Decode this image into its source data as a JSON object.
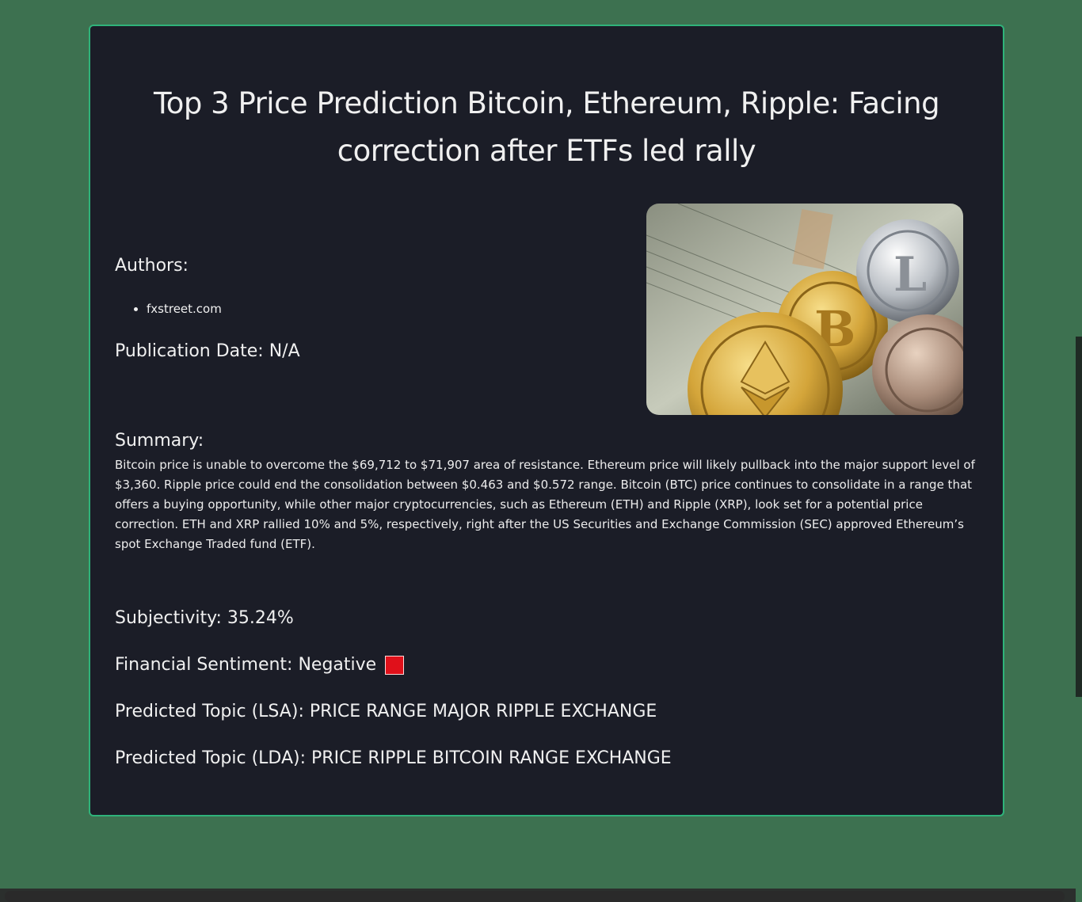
{
  "article": {
    "title": "Top 3 Price Prediction Bitcoin, Ethereum, Ripple: Facing correction after ETFs led rally",
    "authors_label": "Authors:",
    "authors": [
      "fxstreet.com"
    ],
    "publication_date_text": "Publication Date: N/A",
    "summary_label": "Summary:",
    "summary": "Bitcoin price is unable to overcome the $69,712 to $71,907 area of resistance. Ethereum price will likely pullback into the major support level of $3,360. Ripple price could end the consolidation between $0.463 and $0.572 range. Bitcoin (BTC) price continues to consolidate in a range that offers a buying opportunity, while other major cryptocurrencies, such as Ethereum (ETH) and Ripple (XRP), look set for a potential price correction. ETH and XRP rallied 10% and 5%, respectively, right after the US Securities and Exchange Commission (SEC) approved Ethereum’s spot Exchange Traded fund (ETF)."
  },
  "analysis": {
    "subjectivity_text": "Subjectivity: 35.24%",
    "sentiment_text": "Financial Sentiment: Negative",
    "sentiment_color": "#e0101a",
    "lsa_text": "Predicted Topic (LSA): PRICE RANGE MAJOR RIPPLE EXCHANGE",
    "lda_text": "Predicted Topic (LDA): PRICE RIPPLE BITCOIN RANGE EXCHANGE"
  },
  "colors": {
    "page_background": "#3d7150",
    "card_background": "#1b1d27",
    "card_border": "#2fb37a"
  }
}
